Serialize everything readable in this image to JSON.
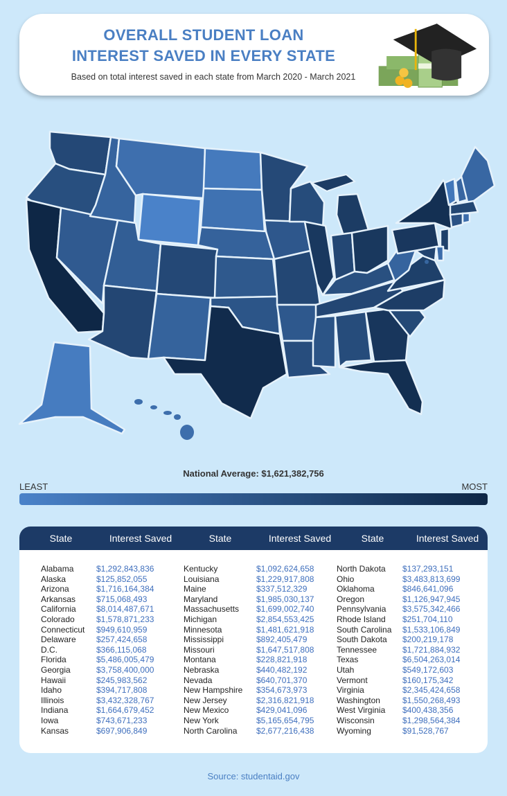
{
  "header": {
    "title_line1": "OVERALL STUDENT LOAN",
    "title_line2": "INTEREST SAVED IN EVERY STATE",
    "subtitle": "Based on total interest saved in each state from March 2020 - March 2021"
  },
  "legend": {
    "national_average": "National Average: $1,621,382,756",
    "least": "LEAST",
    "most": "MOST",
    "color_least": "#4a82c9",
    "color_most": "#0e2746"
  },
  "table": {
    "headers": [
      "State",
      "Interest Saved",
      "State",
      "Interest Saved",
      "State",
      "Interest Saved"
    ],
    "columns": [
      [
        [
          "Alabama",
          "$1,292,843,836"
        ],
        [
          "Alaska",
          "$125,852,055"
        ],
        [
          "Arizona",
          "$1,716,164,384"
        ],
        [
          "Arkansas",
          "$715,068,493"
        ],
        [
          "California",
          "$8,014,487,671"
        ],
        [
          "Colorado",
          "$1,578,871,233"
        ],
        [
          "Connecticut",
          "$949,610,959"
        ],
        [
          "Delaware",
          "$257,424,658"
        ],
        [
          "D.C.",
          "$366,115,068"
        ],
        [
          "Florida",
          "$5,486,005,479"
        ],
        [
          "Georgia",
          "$3,758,400,000"
        ],
        [
          "Hawaii",
          "$245,983,562"
        ],
        [
          "Idaho",
          "$394,717,808"
        ],
        [
          "Illinois",
          "$3,432,328,767"
        ],
        [
          "Indiana",
          "$1,664,679,452"
        ],
        [
          "Iowa",
          "$743,671,233"
        ],
        [
          "Kansas",
          "$697,906,849"
        ]
      ],
      [
        [
          "Kentucky",
          "$1,092,624,658"
        ],
        [
          "Louisiana",
          "$1,229,917,808"
        ],
        [
          "Maine",
          "$337,512,329"
        ],
        [
          "Maryland",
          "$1,985,030,137"
        ],
        [
          "Massachusetts",
          "$1,699,002,740"
        ],
        [
          "Michigan",
          "$2,854,553,425"
        ],
        [
          "Minnesota",
          "$1,481,621,918"
        ],
        [
          "Mississippi",
          "$892,405,479"
        ],
        [
          "Missouri",
          "$1,647,517,808"
        ],
        [
          "Montana",
          "$228,821,918"
        ],
        [
          "Nebraska",
          "$440,482,192"
        ],
        [
          "Nevada",
          "$640,701,370"
        ],
        [
          "New Hampshire",
          "$354,673,973"
        ],
        [
          "New Jersey",
          "$2,316,821,918"
        ],
        [
          "New Mexico",
          "$429,041,096"
        ],
        [
          "New York",
          "$5,165,654,795"
        ],
        [
          "North Carolina",
          "$2,677,216,438"
        ]
      ],
      [
        [
          "North Dakota",
          "$137,293,151"
        ],
        [
          "Ohio",
          "$3,483,813,699"
        ],
        [
          "Oklahoma",
          "$846,641,096"
        ],
        [
          "Oregon",
          "$1,126,947,945"
        ],
        [
          "Pennsylvania",
          "$3,575,342,466"
        ],
        [
          "Rhode Island",
          "$251,704,110"
        ],
        [
          "South Carolina",
          "$1,533,106,849"
        ],
        [
          "South Dakota",
          "$200,219,178"
        ],
        [
          "Tennessee",
          "$1,721,884,932"
        ],
        [
          "Texas",
          "$6,504,263,014"
        ],
        [
          "Utah",
          "$549,172,603"
        ],
        [
          "Vermont",
          "$160,175,342"
        ],
        [
          "Virginia",
          "$2,345,424,658"
        ],
        [
          "Washington",
          "$1,550,268,493"
        ],
        [
          "West Virginia",
          "$400,438,356"
        ],
        [
          "Wisconsin",
          "$1,298,564,384"
        ],
        [
          "Wyoming",
          "$91,528,767"
        ]
      ]
    ]
  },
  "source": "Source: studentaid.gov"
}
